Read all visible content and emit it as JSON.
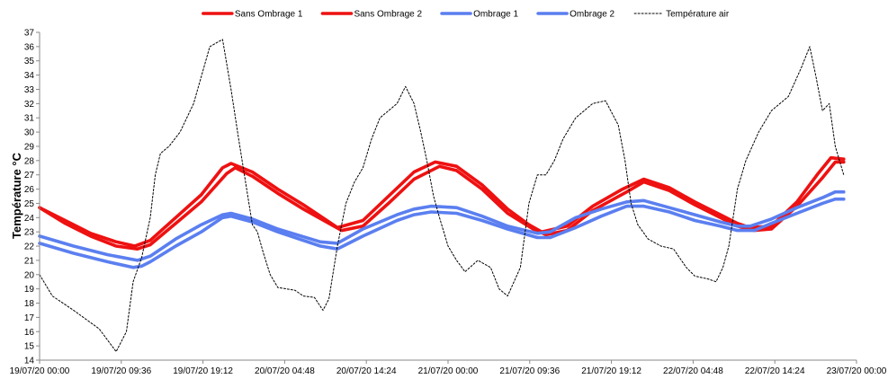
{
  "chart_data": {
    "type": "line",
    "title": "",
    "xlabel": "",
    "ylabel": "Température °C",
    "ylim": [
      14,
      37
    ],
    "ytick_step": 1,
    "xlim_hours": [
      0,
      96
    ],
    "xtick_labels": [
      "19/07/20 00:00",
      "19/07/20 09:36",
      "19/07/20 19:12",
      "20/07/20 04:48",
      "20/07/20 14:24",
      "21/07/20 00:00",
      "21/07/20 09:36",
      "21/07/20 19:12",
      "22/07/20 04:48",
      "22/07/20 14:24",
      "23/07/20 00:00"
    ],
    "xtick_hours": [
      0,
      9.6,
      19.2,
      28.8,
      38.4,
      48,
      57.6,
      67.2,
      76.8,
      86.4,
      96
    ],
    "grid": false,
    "legend_position": "top-center",
    "series": [
      {
        "name": "Sans Ombrage 1",
        "color": "#ee1111",
        "style": "solid",
        "x": [
          0,
          3,
          6,
          9,
          11.2,
          13,
          16,
          19,
          21.5,
          22.5,
          25,
          28,
          31,
          33.5,
          35,
          38,
          41,
          44,
          46.5,
          49,
          52,
          55,
          57.5,
          59,
          62,
          65,
          68.5,
          71,
          74,
          77,
          80,
          82,
          83.5,
          86,
          89,
          91.5,
          93,
          94.5
        ],
        "y": [
          24.7,
          23.8,
          22.9,
          22.3,
          22.0,
          22.4,
          24.0,
          25.6,
          27.5,
          27.8,
          27.2,
          26.0,
          24.9,
          23.9,
          23.3,
          23.8,
          25.5,
          27.2,
          27.9,
          27.6,
          26.3,
          24.6,
          23.5,
          23.0,
          23.4,
          24.8,
          26.0,
          26.7,
          26.1,
          25.1,
          24.2,
          23.6,
          23.3,
          23.4,
          25.1,
          27.1,
          28.2,
          28.1
        ]
      },
      {
        "name": "Sans Ombrage 2",
        "color": "#ee1111",
        "style": "solid",
        "x": [
          0,
          3,
          6,
          9,
          11.5,
          13,
          16,
          19,
          22,
          23,
          25,
          28,
          31,
          34,
          35.5,
          38,
          41,
          44,
          47,
          49,
          52,
          55,
          58,
          59.5,
          62,
          65,
          69,
          71,
          74,
          77,
          80,
          82,
          84,
          86,
          89,
          92,
          93.5,
          94.5
        ],
        "y": [
          24.7,
          23.6,
          22.7,
          22.0,
          21.8,
          22.1,
          23.6,
          25.1,
          27.1,
          27.5,
          26.9,
          25.7,
          24.6,
          23.6,
          23.1,
          23.4,
          25.0,
          26.7,
          27.6,
          27.3,
          26.0,
          24.3,
          23.2,
          22.8,
          23.1,
          24.5,
          25.8,
          26.5,
          25.9,
          24.9,
          24.0,
          23.4,
          23.1,
          23.2,
          24.8,
          26.8,
          27.9,
          27.9
        ]
      },
      {
        "name": "Ombrage 1",
        "color": "#5b7ff0",
        "style": "solid",
        "x": [
          0,
          4,
          8,
          11.5,
          13,
          16,
          19,
          21.5,
          22.5,
          25,
          28,
          33,
          35,
          38,
          42,
          44,
          46,
          49,
          52,
          55,
          58.5,
          60,
          63,
          66,
          69,
          71,
          74,
          77,
          80,
          82,
          83.5,
          86,
          89,
          92,
          93.5,
          94.5
        ],
        "y": [
          22.7,
          22.0,
          21.4,
          21.0,
          21.3,
          22.5,
          23.5,
          24.2,
          24.3,
          23.9,
          23.2,
          22.3,
          22.2,
          23.2,
          24.2,
          24.6,
          24.8,
          24.7,
          24.1,
          23.4,
          22.9,
          23.0,
          24.0,
          24.6,
          25.1,
          25.2,
          24.7,
          24.2,
          23.7,
          23.4,
          23.4,
          23.9,
          24.7,
          25.4,
          25.8,
          25.8
        ]
      },
      {
        "name": "Ombrage 2",
        "color": "#5b7ff0",
        "style": "solid",
        "x": [
          0,
          4,
          8,
          11,
          12,
          13,
          16,
          19,
          21.5,
          22.5,
          25,
          28,
          33,
          35,
          38,
          42,
          44,
          46,
          49,
          52,
          55,
          58.5,
          60,
          63,
          66,
          69,
          71,
          74,
          77,
          80,
          82,
          84,
          86,
          89,
          92,
          93.5,
          94.5
        ],
        "y": [
          22.2,
          21.5,
          20.9,
          20.5,
          20.6,
          20.9,
          22.0,
          23.0,
          24.0,
          24.1,
          23.7,
          23.0,
          22.0,
          21.8,
          22.7,
          23.8,
          24.2,
          24.4,
          24.3,
          23.8,
          23.2,
          22.6,
          22.6,
          23.3,
          24.1,
          24.8,
          24.8,
          24.4,
          23.8,
          23.4,
          23.1,
          23.1,
          23.6,
          24.3,
          25.0,
          25.3,
          25.3
        ]
      },
      {
        "name": "Température air",
        "color": "#000000",
        "style": "dotted",
        "x": [
          0,
          1.5,
          4,
          7,
          9,
          10.2,
          11,
          12,
          13,
          13.6,
          14.2,
          15.2,
          16.5,
          18.1,
          20,
          21.5,
          22.5,
          23.4,
          24.2,
          25,
          25.6,
          26.3,
          27.1,
          28,
          30,
          31,
          32.3,
          33.3,
          34,
          35,
          36,
          37,
          38,
          39,
          40,
          41,
          42,
          43,
          44,
          44.8,
          45.5,
          46.3,
          47,
          48,
          49,
          50,
          51.5,
          53,
          54,
          55,
          56.5,
          57.5,
          58.5,
          59.5,
          60.5,
          61.5,
          63,
          65,
          66.5,
          68,
          68.8,
          69.5,
          70.3,
          71.5,
          73,
          74.5,
          76,
          77,
          78.5,
          79.5,
          80.3,
          81,
          82,
          83,
          84.5,
          86,
          88,
          89.5,
          90.5,
          91.2,
          92,
          92.8,
          93.5,
          94.5
        ],
        "y": [
          20.0,
          18.5,
          17.5,
          16.2,
          14.6,
          16.0,
          19.5,
          21.2,
          24.0,
          27.0,
          28.5,
          29.0,
          30.0,
          32.0,
          36.0,
          36.5,
          33.0,
          29.5,
          26.5,
          23.5,
          23.0,
          21.5,
          20.0,
          19.1,
          18.9,
          18.5,
          18.4,
          17.5,
          18.3,
          22.0,
          25.0,
          26.5,
          27.5,
          29.5,
          31.0,
          31.5,
          32.0,
          33.2,
          32.0,
          30.0,
          28.0,
          25.5,
          24.0,
          22.0,
          21.0,
          20.2,
          21.0,
          20.5,
          19.0,
          18.5,
          20.5,
          25.0,
          27.0,
          27.0,
          28.0,
          29.5,
          31.0,
          32.0,
          32.2,
          30.5,
          28.0,
          25.0,
          23.5,
          22.5,
          22.0,
          21.8,
          20.5,
          19.9,
          19.7,
          19.5,
          20.5,
          22.0,
          26.0,
          28.0,
          30.0,
          31.5,
          32.5,
          34.5,
          36.0,
          34.0,
          31.5,
          32.0,
          29.0,
          27.0
        ]
      }
    ]
  }
}
